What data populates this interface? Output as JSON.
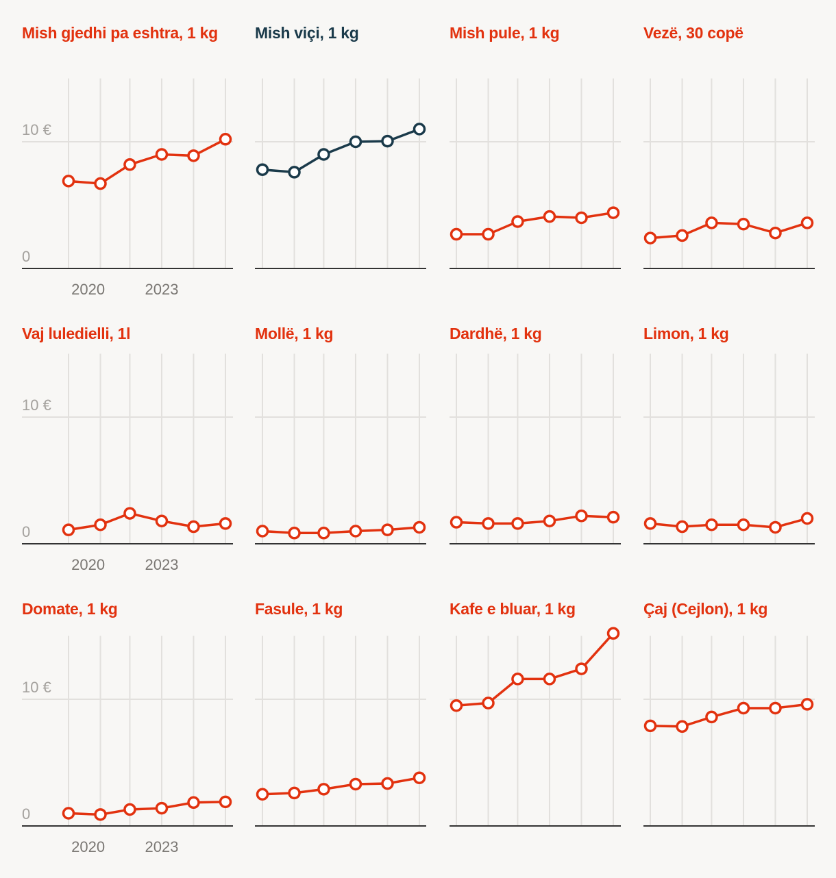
{
  "colors": {
    "accent": "#e2320f",
    "highlight": "#1a3a4a",
    "grid": "#e2e0dd",
    "axis": "#333333",
    "background": "#f8f7f5"
  },
  "chart_data": [
    {
      "type": "line",
      "title": "Mish gjedhi pa eshtra, 1 kg",
      "color": "#e2320f",
      "x": [
        2019.2,
        2020.5,
        2021.7,
        2023.0,
        2024.3,
        2025.6
      ],
      "values": [
        6.9,
        6.7,
        8.2,
        9.0,
        8.9,
        10.2
      ],
      "ylim": [
        0,
        15
      ],
      "yticks": [
        "0",
        "10 €"
      ],
      "xticks": [
        "2020",
        "2023"
      ]
    },
    {
      "type": "line",
      "title": "Mish viçi, 1 kg",
      "color": "#1a3a4a",
      "x": [
        2019.2,
        2020.5,
        2021.7,
        2023.0,
        2024.3,
        2025.6
      ],
      "values": [
        7.8,
        7.6,
        9.0,
        10.0,
        10.05,
        11.0
      ],
      "ylim": [
        0,
        15
      ]
    },
    {
      "type": "line",
      "title": "Mish pule, 1 kg",
      "color": "#e2320f",
      "x": [
        2019.2,
        2020.5,
        2021.7,
        2023.0,
        2024.3,
        2025.6
      ],
      "values": [
        2.7,
        2.7,
        3.7,
        4.1,
        4.0,
        4.4
      ],
      "ylim": [
        0,
        15
      ]
    },
    {
      "type": "line",
      "title": "Vezë, 30 copë",
      "color": "#e2320f",
      "x": [
        2019.2,
        2020.5,
        2021.7,
        2023.0,
        2024.3,
        2025.6
      ],
      "values": [
        2.4,
        2.6,
        3.6,
        3.5,
        2.8,
        3.6
      ],
      "ylim": [
        0,
        15
      ]
    },
    {
      "type": "line",
      "title": "Vaj luledielli, 1l",
      "color": "#e2320f",
      "x": [
        2019.2,
        2020.5,
        2021.7,
        2023.0,
        2024.3,
        2025.6
      ],
      "values": [
        1.1,
        1.5,
        2.4,
        1.8,
        1.35,
        1.6
      ],
      "ylim": [
        0,
        15
      ],
      "yticks": [
        "0",
        "10 €"
      ],
      "xticks": [
        "2020",
        "2023"
      ]
    },
    {
      "type": "line",
      "title": "Mollë, 1 kg",
      "color": "#e2320f",
      "x": [
        2019.2,
        2020.5,
        2021.7,
        2023.0,
        2024.3,
        2025.6
      ],
      "values": [
        1.0,
        0.85,
        0.85,
        1.0,
        1.1,
        1.3
      ],
      "ylim": [
        0,
        15
      ]
    },
    {
      "type": "line",
      "title": "Dardhë, 1 kg",
      "color": "#e2320f",
      "x": [
        2019.2,
        2020.5,
        2021.7,
        2023.0,
        2024.3,
        2025.6
      ],
      "values": [
        1.7,
        1.6,
        1.6,
        1.8,
        2.2,
        2.1
      ],
      "ylim": [
        0,
        15
      ]
    },
    {
      "type": "line",
      "title": "Limon, 1 kg",
      "color": "#e2320f",
      "x": [
        2019.2,
        2020.5,
        2021.7,
        2023.0,
        2024.3,
        2025.6
      ],
      "values": [
        1.6,
        1.35,
        1.5,
        1.5,
        1.3,
        2.0
      ],
      "ylim": [
        0,
        15
      ]
    },
    {
      "type": "line",
      "title": "Domate, 1 kg",
      "color": "#e2320f",
      "x": [
        2019.2,
        2020.5,
        2021.7,
        2023.0,
        2024.3,
        2025.6
      ],
      "values": [
        1.0,
        0.9,
        1.3,
        1.4,
        1.85,
        1.9
      ],
      "ylim": [
        0,
        15
      ],
      "yticks": [
        "0",
        "10 €"
      ],
      "xticks": [
        "2020",
        "2023"
      ]
    },
    {
      "type": "line",
      "title": "Fasule, 1 kg",
      "color": "#e2320f",
      "x": [
        2019.2,
        2020.5,
        2021.7,
        2023.0,
        2024.3,
        2025.6
      ],
      "values": [
        2.5,
        2.6,
        2.9,
        3.3,
        3.35,
        3.8
      ],
      "ylim": [
        0,
        15
      ]
    },
    {
      "type": "line",
      "title": "Kafe e bluar, 1 kg",
      "color": "#e2320f",
      "x": [
        2019.2,
        2020.5,
        2021.7,
        2023.0,
        2024.3,
        2025.6
      ],
      "values": [
        9.5,
        9.7,
        11.6,
        11.6,
        12.4,
        15.2
      ],
      "ylim": [
        0,
        15
      ]
    },
    {
      "type": "line",
      "title": "Çaj (Cejlon), 1 kg",
      "color": "#e2320f",
      "x": [
        2019.2,
        2020.5,
        2021.7,
        2023.0,
        2024.3,
        2025.6
      ],
      "values": [
        7.9,
        7.85,
        8.6,
        9.3,
        9.3,
        9.6
      ],
      "ylim": [
        0,
        15
      ]
    }
  ]
}
